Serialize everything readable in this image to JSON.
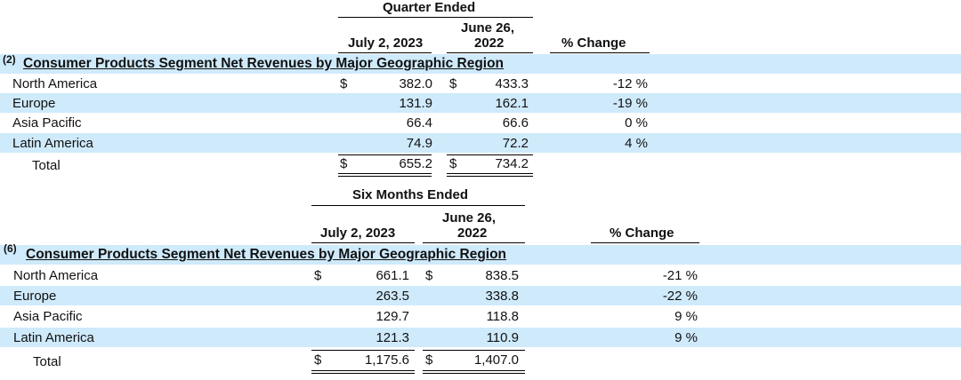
{
  "quarter": {
    "period_label": "Quarter Ended",
    "col1": "July 2, 2023",
    "col2_line1": "June 26,",
    "col2_line2": "2022",
    "change_label": "% Change",
    "footnote": "(2)",
    "segment_title": "Consumer Products Segment Net Revenues by Major Geographic Region",
    "currency": "$",
    "rows": [
      {
        "region": "North America",
        "v2023": "382.0",
        "v2022": "433.3",
        "change": "-12 %"
      },
      {
        "region": "Europe",
        "v2023": "131.9",
        "v2022": "162.1",
        "change": "-19 %"
      },
      {
        "region": "Asia Pacific",
        "v2023": "66.4",
        "v2022": "66.6",
        "change": "0 %"
      },
      {
        "region": "Latin America",
        "v2023": "74.9",
        "v2022": "72.2",
        "change": "4 %"
      }
    ],
    "total": {
      "label": "Total",
      "v2023": "655.2",
      "v2022": "734.2"
    }
  },
  "six_months": {
    "period_label": "Six Months Ended",
    "col1": "July 2, 2023",
    "col2_line1": "June 26,",
    "col2_line2": "2022",
    "change_label": "% Change",
    "footnote": "(6)",
    "segment_title": "Consumer Products Segment Net Revenues by Major Geographic Region",
    "currency": "$",
    "rows": [
      {
        "region": "North America",
        "v2023": "661.1",
        "v2022": "838.5",
        "change": "-21 %"
      },
      {
        "region": "Europe",
        "v2023": "263.5",
        "v2022": "338.8",
        "change": "-22 %"
      },
      {
        "region": "Asia Pacific",
        "v2023": "129.7",
        "v2022": "118.8",
        "change": "9 %"
      },
      {
        "region": "Latin America",
        "v2023": "121.3",
        "v2022": "110.9",
        "change": "9 %"
      }
    ],
    "total": {
      "label": "Total",
      "v2023": "1,175.6",
      "v2022": "1,407.0"
    }
  },
  "colors": {
    "band": "#cfeafb",
    "text": "#111111",
    "rule": "#000000"
  }
}
